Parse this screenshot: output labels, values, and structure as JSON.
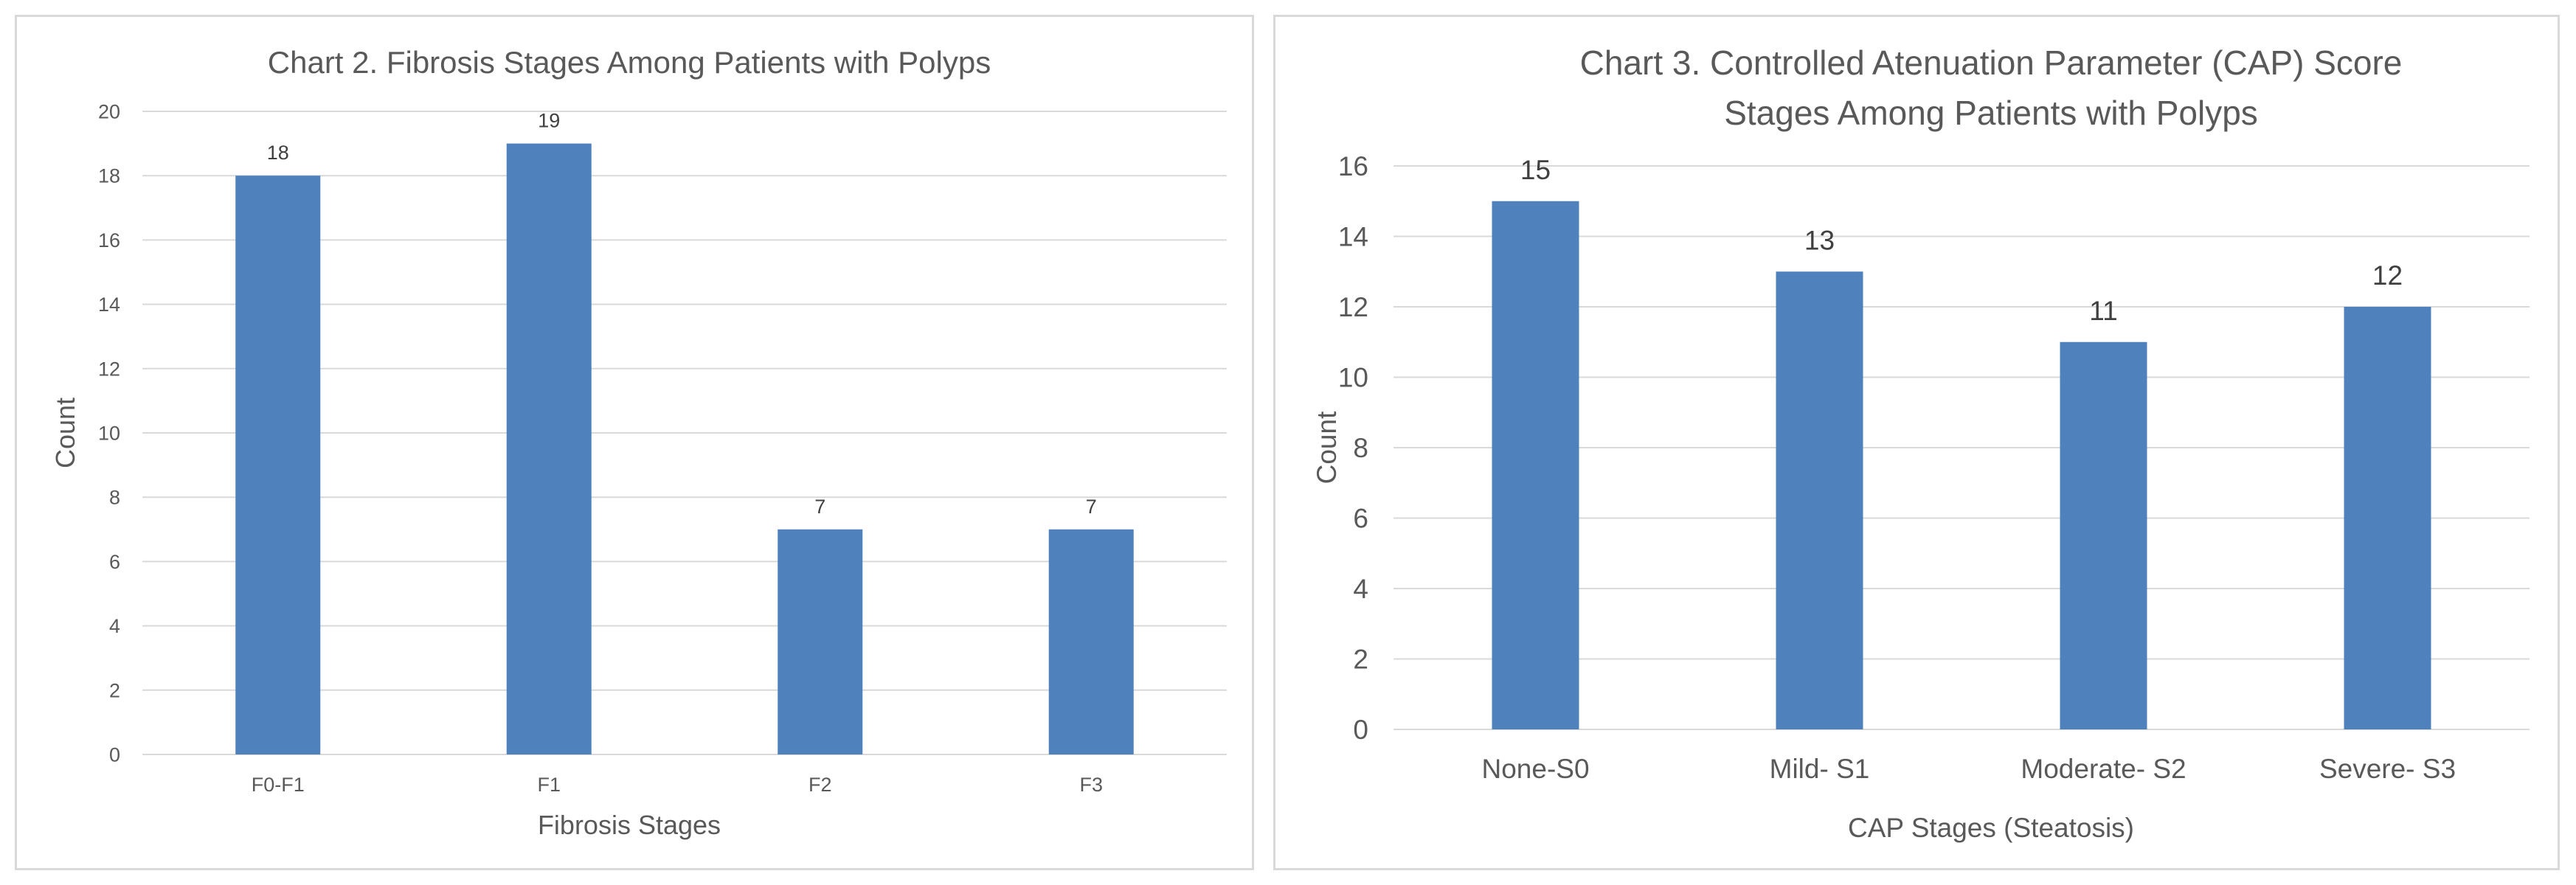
{
  "chart_data": [
    {
      "type": "bar",
      "title": "Chart 2. Fibrosis Stages Among Patients with Polyps",
      "title_lines": [
        "Chart 2. Fibrosis Stages Among Patients with Polyps"
      ],
      "xlabel": "Fibrosis Stages",
      "ylabel": "Count",
      "categories": [
        "F0-F1",
        "F1",
        "F2",
        "F3"
      ],
      "values": [
        18,
        19,
        7,
        7
      ],
      "ylim": [
        0,
        20
      ],
      "y_ticks": [
        "0",
        "2",
        "4",
        "6",
        "8",
        "10",
        "12",
        "14",
        "16",
        "18",
        "20"
      ],
      "grid": true,
      "legend": "none",
      "bar_color": "#4f81bd",
      "gridline_color": "#d9d9d9"
    },
    {
      "type": "bar",
      "title": "Chart 3. Controlled Atenuation Parameter (CAP) Score Stages Among Patients with Polyps",
      "title_lines": [
        "Chart 3. Controlled Atenuation Parameter (CAP) Score",
        "Stages Among Patients with Polyps"
      ],
      "xlabel": "CAP Stages (Steatosis)",
      "ylabel": "Count",
      "categories": [
        "None-S0",
        "Mild- S1",
        "Moderate- S2",
        "Severe- S3"
      ],
      "values": [
        15,
        13,
        11,
        12
      ],
      "ylim": [
        0,
        16
      ],
      "y_ticks": [
        "0",
        "2",
        "4",
        "6",
        "8",
        "10",
        "12",
        "14",
        "16"
      ],
      "grid": true,
      "legend": "none",
      "bar_color": "#4f81bd",
      "gridline_color": "#d9d9d9"
    }
  ]
}
